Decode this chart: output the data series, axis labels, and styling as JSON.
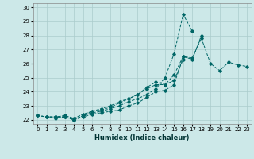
{
  "title": "",
  "xlabel": "Humidex (Indice chaleur)",
  "ylabel": "",
  "bg_color": "#cce8e8",
  "grid_color": "#aacccc",
  "line_color": "#006666",
  "xlim": [
    -0.5,
    23.5
  ],
  "ylim": [
    21.7,
    30.3
  ],
  "yticks": [
    22,
    23,
    24,
    25,
    26,
    27,
    28,
    29,
    30
  ],
  "xticks": [
    0,
    1,
    2,
    3,
    4,
    5,
    6,
    7,
    8,
    9,
    10,
    11,
    12,
    13,
    14,
    15,
    16,
    17,
    18,
    19,
    20,
    21,
    22,
    23
  ],
  "series": [
    [
      22.3,
      22.2,
      22.2,
      22.2,
      22.0,
      22.2,
      22.4,
      22.5,
      22.6,
      22.7,
      23.0,
      23.2,
      23.6,
      24.0,
      24.1,
      24.5,
      26.5,
      26.4,
      27.8,
      26.0,
      25.5,
      26.1,
      25.9,
      25.8
    ],
    [
      22.3,
      22.2,
      22.2,
      22.2,
      22.0,
      22.3,
      22.5,
      22.6,
      22.8,
      23.0,
      23.3,
      23.5,
      23.8,
      24.2,
      25.0,
      26.7,
      29.5,
      28.3,
      null,
      null,
      null,
      null,
      null,
      null
    ],
    [
      22.3,
      22.2,
      22.1,
      22.2,
      22.0,
      22.3,
      22.6,
      22.8,
      23.0,
      23.3,
      23.5,
      23.8,
      24.2,
      24.5,
      24.5,
      24.8,
      26.3,
      null,
      null,
      null,
      null,
      null,
      null,
      null
    ],
    [
      22.3,
      22.2,
      22.2,
      22.3,
      22.1,
      22.4,
      22.6,
      22.7,
      22.9,
      23.2,
      23.5,
      23.8,
      24.3,
      24.7,
      24.5,
      25.2,
      26.5,
      26.3,
      28.0,
      null,
      null,
      null,
      null,
      null
    ]
  ],
  "tick_fontsize": 5.0,
  "xlabel_fontsize": 6.0
}
